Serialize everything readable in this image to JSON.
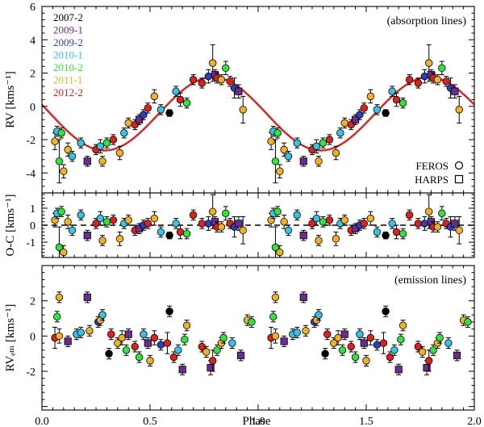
{
  "chart_data": {
    "type": "scatter",
    "x_axis": {
      "label": "Phase",
      "range": [
        0.0,
        2.0
      ],
      "ticks": [
        0.0,
        0.5,
        1.0,
        1.5,
        2.0
      ],
      "tick_labels": [
        "0.0",
        "0.5",
        "1.0",
        "1.5",
        "2.0"
      ]
    },
    "legend_years": [
      {
        "name": "2007-2",
        "color": "#000000"
      },
      {
        "name": "2009-1",
        "color": "#6a2c91"
      },
      {
        "name": "2009-2",
        "color": "#2b3fbf"
      },
      {
        "name": "2010-1",
        "color": "#33c4e6"
      },
      {
        "name": "2010-2",
        "color": "#2ee63a"
      },
      {
        "name": "2011-1",
        "color": "#f2b21f"
      },
      {
        "name": "2012-2",
        "color": "#e0201c"
      }
    ],
    "instruments": [
      {
        "name": "FEROS",
        "marker": "circle"
      },
      {
        "name": "HARPS",
        "marker": "square"
      }
    ],
    "panels": [
      {
        "id": "rv",
        "ylabel": "RV [kms⁻¹]",
        "ylim": [
          -5.2,
          6.0
        ],
        "yticks": [
          -4,
          -2,
          0,
          2,
          4,
          6
        ],
        "annotation": "(absorption lines)",
        "fit_curve": {
          "name": "RV fit",
          "color": "#e0201c",
          "gamma": -0.45,
          "amplitude": 2.2,
          "phase_of_max": 0.79
        },
        "points": [
          {
            "x": 0.06,
            "y": -2.1,
            "e": 0.5,
            "c": 5,
            "m": "o"
          },
          {
            "x": 0.07,
            "y": -1.5,
            "e": 0.3,
            "c": 3,
            "m": "o"
          },
          {
            "x": 0.08,
            "y": -3.3,
            "e": 1.3,
            "c": 4,
            "m": "o"
          },
          {
            "x": 0.09,
            "y": -1.6,
            "e": 0.3,
            "c": 4,
            "m": "o"
          },
          {
            "x": 0.1,
            "y": -3.9,
            "e": 0.4,
            "c": 5,
            "m": "o"
          },
          {
            "x": 0.12,
            "y": -2.6,
            "e": 0.4,
            "c": 5,
            "m": "o"
          },
          {
            "x": 0.14,
            "y": -3.0,
            "e": 0.3,
            "c": 3,
            "m": "o"
          },
          {
            "x": 0.18,
            "y": -2.2,
            "e": 0.3,
            "c": 3,
            "m": "o"
          },
          {
            "x": 0.21,
            "y": -3.3,
            "e": 0.3,
            "c": 1,
            "m": "s"
          },
          {
            "x": 0.25,
            "y": -2.6,
            "e": 0.3,
            "c": 6,
            "m": "o"
          },
          {
            "x": 0.27,
            "y": -2.4,
            "e": 0.4,
            "c": 3,
            "m": "o"
          },
          {
            "x": 0.28,
            "y": -3.3,
            "e": 0.3,
            "c": 5,
            "m": "o"
          },
          {
            "x": 0.3,
            "y": -2.2,
            "e": 0.3,
            "c": 4,
            "m": "o"
          },
          {
            "x": 0.33,
            "y": -2.0,
            "e": 0.3,
            "c": 6,
            "m": "o"
          },
          {
            "x": 0.36,
            "y": -2.8,
            "e": 0.4,
            "c": 5,
            "m": "o"
          },
          {
            "x": 0.38,
            "y": -1.6,
            "e": 0.3,
            "c": 3,
            "m": "o"
          },
          {
            "x": 0.4,
            "y": -1.0,
            "e": 0.3,
            "c": 5,
            "m": "o"
          },
          {
            "x": 0.43,
            "y": -1.1,
            "e": 0.3,
            "c": 6,
            "m": "o"
          },
          {
            "x": 0.45,
            "y": -0.8,
            "e": 0.3,
            "c": 1,
            "m": "s"
          },
          {
            "x": 0.47,
            "y": -0.5,
            "e": 0.3,
            "c": 2,
            "m": "o"
          },
          {
            "x": 0.49,
            "y": -0.1,
            "e": 0.3,
            "c": 6,
            "m": "o"
          },
          {
            "x": 0.52,
            "y": 0.6,
            "e": 0.4,
            "c": 5,
            "m": "o"
          },
          {
            "x": 0.55,
            "y": -0.2,
            "e": 0.3,
            "c": 3,
            "m": "o"
          },
          {
            "x": 0.59,
            "y": -0.4,
            "e": 0.2,
            "c": 0,
            "m": "o"
          },
          {
            "x": 0.62,
            "y": 0.9,
            "e": 0.3,
            "c": 3,
            "m": "o"
          },
          {
            "x": 0.64,
            "y": 0.4,
            "e": 0.4,
            "c": 6,
            "m": "o"
          },
          {
            "x": 0.67,
            "y": 0.2,
            "e": 0.3,
            "c": 4,
            "m": "o"
          },
          {
            "x": 0.7,
            "y": 1.6,
            "e": 0.3,
            "c": 6,
            "m": "o"
          },
          {
            "x": 0.74,
            "y": 1.4,
            "e": 0.3,
            "c": 6,
            "m": "o"
          },
          {
            "x": 0.77,
            "y": 1.8,
            "e": 0.4,
            "c": 2,
            "m": "o"
          },
          {
            "x": 0.79,
            "y": 2.6,
            "e": 1.1,
            "c": 5,
            "m": "o"
          },
          {
            "x": 0.8,
            "y": 1.9,
            "e": 0.3,
            "c": 1,
            "m": "s"
          },
          {
            "x": 0.81,
            "y": 1.7,
            "e": 0.3,
            "c": 6,
            "m": "o"
          },
          {
            "x": 0.83,
            "y": 1.6,
            "e": 0.3,
            "c": 5,
            "m": "o"
          },
          {
            "x": 0.85,
            "y": 2.3,
            "e": 0.4,
            "c": 4,
            "m": "o"
          },
          {
            "x": 0.87,
            "y": 1.5,
            "e": 0.3,
            "c": 6,
            "m": "o"
          },
          {
            "x": 0.89,
            "y": 1.1,
            "e": 0.6,
            "c": 2,
            "m": "o"
          },
          {
            "x": 0.91,
            "y": 0.9,
            "e": 0.4,
            "c": 1,
            "m": "s"
          },
          {
            "x": 0.93,
            "y": -0.2,
            "e": 0.8,
            "c": 5,
            "m": "o"
          }
        ]
      },
      {
        "id": "oc",
        "ylabel": "O-C [kms⁻¹]",
        "ylim": [
          -1.9,
          1.9
        ],
        "yticks": [
          -1,
          0,
          1
        ],
        "zero_line": true,
        "points": [
          {
            "x": 0.06,
            "y": 0.3,
            "e": 0.4,
            "c": 5,
            "m": "o"
          },
          {
            "x": 0.07,
            "y": 0.7,
            "e": 0.3,
            "c": 3,
            "m": "o"
          },
          {
            "x": 0.08,
            "y": -1.3,
            "e": 1.2,
            "c": 4,
            "m": "o"
          },
          {
            "x": 0.09,
            "y": 0.8,
            "e": 0.3,
            "c": 4,
            "m": "o"
          },
          {
            "x": 0.1,
            "y": -1.6,
            "e": 0.4,
            "c": 5,
            "m": "o"
          },
          {
            "x": 0.12,
            "y": 0.2,
            "e": 0.4,
            "c": 5,
            "m": "o"
          },
          {
            "x": 0.14,
            "y": -0.3,
            "e": 0.3,
            "c": 3,
            "m": "o"
          },
          {
            "x": 0.18,
            "y": 0.6,
            "e": 0.3,
            "c": 3,
            "m": "o"
          },
          {
            "x": 0.21,
            "y": -0.6,
            "e": 0.3,
            "c": 1,
            "m": "s"
          },
          {
            "x": 0.25,
            "y": 0.1,
            "e": 0.3,
            "c": 6,
            "m": "o"
          },
          {
            "x": 0.27,
            "y": 0.4,
            "e": 0.4,
            "c": 3,
            "m": "o"
          },
          {
            "x": 0.28,
            "y": -0.9,
            "e": 0.3,
            "c": 5,
            "m": "o"
          },
          {
            "x": 0.3,
            "y": 0.2,
            "e": 0.3,
            "c": 4,
            "m": "o"
          },
          {
            "x": 0.33,
            "y": 0.3,
            "e": 0.3,
            "c": 6,
            "m": "o"
          },
          {
            "x": 0.36,
            "y": -0.8,
            "e": 0.4,
            "c": 5,
            "m": "o"
          },
          {
            "x": 0.38,
            "y": 0.1,
            "e": 0.3,
            "c": 3,
            "m": "o"
          },
          {
            "x": 0.4,
            "y": 0.3,
            "e": 0.3,
            "c": 5,
            "m": "o"
          },
          {
            "x": 0.43,
            "y": -0.3,
            "e": 0.3,
            "c": 6,
            "m": "o"
          },
          {
            "x": 0.45,
            "y": -0.2,
            "e": 0.3,
            "c": 1,
            "m": "s"
          },
          {
            "x": 0.47,
            "y": 0.0,
            "e": 0.3,
            "c": 2,
            "m": "o"
          },
          {
            "x": 0.49,
            "y": 0.1,
            "e": 0.3,
            "c": 6,
            "m": "o"
          },
          {
            "x": 0.52,
            "y": 0.4,
            "e": 0.4,
            "c": 5,
            "m": "o"
          },
          {
            "x": 0.55,
            "y": -0.4,
            "e": 0.3,
            "c": 3,
            "m": "o"
          },
          {
            "x": 0.59,
            "y": -0.6,
            "e": 0.2,
            "c": 0,
            "m": "o"
          },
          {
            "x": 0.62,
            "y": 0.1,
            "e": 0.3,
            "c": 3,
            "m": "o"
          },
          {
            "x": 0.64,
            "y": -0.4,
            "e": 0.4,
            "c": 6,
            "m": "o"
          },
          {
            "x": 0.67,
            "y": -0.5,
            "e": 0.3,
            "c": 4,
            "m": "o"
          },
          {
            "x": 0.7,
            "y": 0.6,
            "e": 0.3,
            "c": 6,
            "m": "o"
          },
          {
            "x": 0.74,
            "y": 0.1,
            "e": 0.3,
            "c": 6,
            "m": "o"
          },
          {
            "x": 0.77,
            "y": 0.1,
            "e": 0.4,
            "c": 2,
            "m": "o"
          },
          {
            "x": 0.79,
            "y": 0.8,
            "e": 1.0,
            "c": 5,
            "m": "o"
          },
          {
            "x": 0.8,
            "y": 0.2,
            "e": 0.3,
            "c": 1,
            "m": "s"
          },
          {
            "x": 0.81,
            "y": -0.1,
            "e": 0.3,
            "c": 6,
            "m": "o"
          },
          {
            "x": 0.83,
            "y": -0.1,
            "e": 0.3,
            "c": 5,
            "m": "o"
          },
          {
            "x": 0.85,
            "y": 0.7,
            "e": 0.4,
            "c": 4,
            "m": "o"
          },
          {
            "x": 0.87,
            "y": 0.1,
            "e": 0.3,
            "c": 6,
            "m": "o"
          },
          {
            "x": 0.89,
            "y": -0.1,
            "e": 0.6,
            "c": 2,
            "m": "o"
          },
          {
            "x": 0.91,
            "y": 0.1,
            "e": 0.4,
            "c": 1,
            "m": "s"
          },
          {
            "x": 0.93,
            "y": -0.3,
            "e": 0.8,
            "c": 5,
            "m": "o"
          }
        ]
      },
      {
        "id": "em",
        "ylabel": "RVₑₘ [kms⁻¹]",
        "ylim": [
          -4.2,
          4.0
        ],
        "yticks": [
          -2,
          0,
          2
        ],
        "annotation": "(emission lines)",
        "points": [
          {
            "x": 0.06,
            "y": -0.1,
            "e": 0.6,
            "c": 6,
            "m": "o"
          },
          {
            "x": 0.07,
            "y": 1.1,
            "e": 0.3,
            "c": 4,
            "m": "o"
          },
          {
            "x": 0.08,
            "y": 0.0,
            "e": 0.4,
            "c": 5,
            "m": "o"
          },
          {
            "x": 0.08,
            "y": 2.2,
            "e": 0.3,
            "c": 5,
            "m": "o"
          },
          {
            "x": 0.12,
            "y": -0.3,
            "e": 0.3,
            "c": 1,
            "m": "s"
          },
          {
            "x": 0.16,
            "y": 0.1,
            "e": 0.3,
            "c": 3,
            "m": "o"
          },
          {
            "x": 0.18,
            "y": 0.2,
            "e": 0.3,
            "c": 3,
            "m": "o"
          },
          {
            "x": 0.21,
            "y": 2.2,
            "e": 0.3,
            "c": 1,
            "m": "s"
          },
          {
            "x": 0.22,
            "y": 0.3,
            "e": 0.3,
            "c": 5,
            "m": "o"
          },
          {
            "x": 0.26,
            "y": 0.8,
            "e": 0.3,
            "c": 2,
            "m": "o"
          },
          {
            "x": 0.27,
            "y": 0.9,
            "e": 0.3,
            "c": 5,
            "m": "o"
          },
          {
            "x": 0.28,
            "y": 1.2,
            "e": 0.3,
            "c": 3,
            "m": "o"
          },
          {
            "x": 0.31,
            "y": -1.0,
            "e": 0.3,
            "c": 0,
            "m": "o"
          },
          {
            "x": 0.32,
            "y": 0.1,
            "e": 0.3,
            "c": 6,
            "m": "o"
          },
          {
            "x": 0.35,
            "y": -0.4,
            "e": 0.3,
            "c": 5,
            "m": "o"
          },
          {
            "x": 0.37,
            "y": -0.1,
            "e": 0.4,
            "c": 5,
            "m": "o"
          },
          {
            "x": 0.39,
            "y": -0.8,
            "e": 0.3,
            "c": 4,
            "m": "o"
          },
          {
            "x": 0.4,
            "y": 0.1,
            "e": 0.3,
            "c": 1,
            "m": "s"
          },
          {
            "x": 0.43,
            "y": -0.6,
            "e": 0.3,
            "c": 6,
            "m": "o"
          },
          {
            "x": 0.45,
            "y": -1.2,
            "e": 0.3,
            "c": 4,
            "m": "o"
          },
          {
            "x": 0.47,
            "y": 0.1,
            "e": 0.3,
            "c": 3,
            "m": "o"
          },
          {
            "x": 0.49,
            "y": -0.4,
            "e": 0.3,
            "c": 1,
            "m": "s"
          },
          {
            "x": 0.5,
            "y": -1.4,
            "e": 0.3,
            "c": 5,
            "m": "o"
          },
          {
            "x": 0.52,
            "y": -0.1,
            "e": 0.4,
            "c": 6,
            "m": "o"
          },
          {
            "x": 0.55,
            "y": -0.5,
            "e": 0.3,
            "c": 2,
            "m": "o"
          },
          {
            "x": 0.58,
            "y": -0.4,
            "e": 0.6,
            "c": 6,
            "m": "o"
          },
          {
            "x": 0.59,
            "y": 1.4,
            "e": 0.3,
            "c": 0,
            "m": "o"
          },
          {
            "x": 0.61,
            "y": -1.2,
            "e": 0.3,
            "c": 6,
            "m": "o"
          },
          {
            "x": 0.63,
            "y": -0.8,
            "e": 0.3,
            "c": 3,
            "m": "o"
          },
          {
            "x": 0.65,
            "y": -1.9,
            "e": 0.3,
            "c": 1,
            "m": "s"
          },
          {
            "x": 0.66,
            "y": -0.2,
            "e": 0.3,
            "c": 4,
            "m": "o"
          },
          {
            "x": 0.67,
            "y": 0.6,
            "e": 0.3,
            "c": 5,
            "m": "o"
          },
          {
            "x": 0.74,
            "y": -0.6,
            "e": 0.3,
            "c": 6,
            "m": "o"
          },
          {
            "x": 0.76,
            "y": -0.9,
            "e": 0.3,
            "c": 5,
            "m": "o"
          },
          {
            "x": 0.78,
            "y": -1.8,
            "e": 0.4,
            "c": 1,
            "m": "s"
          },
          {
            "x": 0.79,
            "y": -1.4,
            "e": 0.6,
            "c": 6,
            "m": "o"
          },
          {
            "x": 0.81,
            "y": -0.8,
            "e": 0.3,
            "c": 4,
            "m": "o"
          },
          {
            "x": 0.83,
            "y": -0.4,
            "e": 0.3,
            "c": 5,
            "m": "o"
          },
          {
            "x": 0.84,
            "y": -0.1,
            "e": 0.3,
            "c": 4,
            "m": "o"
          },
          {
            "x": 0.88,
            "y": -0.4,
            "e": 0.3,
            "c": 3,
            "m": "o"
          },
          {
            "x": 0.92,
            "y": -1.1,
            "e": 0.3,
            "c": 1,
            "m": "s"
          },
          {
            "x": 0.95,
            "y": 0.9,
            "e": 0.3,
            "c": 5,
            "m": "o"
          },
          {
            "x": 0.97,
            "y": 0.8,
            "e": 0.3,
            "c": 4,
            "m": "o"
          }
        ]
      }
    ]
  }
}
